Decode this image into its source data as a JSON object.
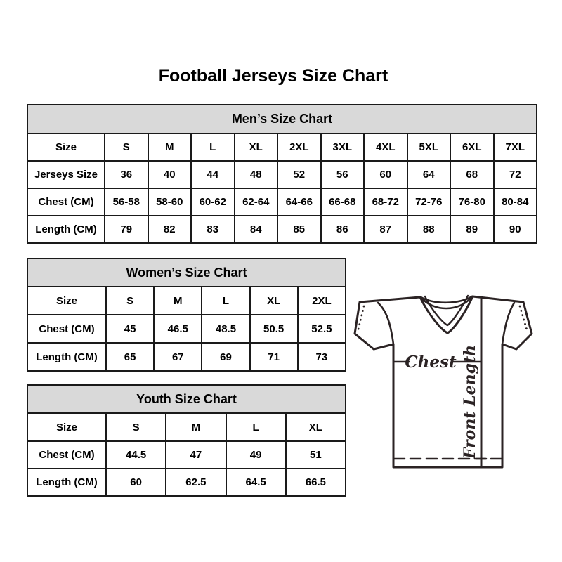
{
  "page_title": "Football Jerseys Size Chart",
  "colors": {
    "table_header_bg": "#d9d9d9",
    "table_border": "#1a1a1a",
    "line_art": "#2b2324",
    "text": "#000000"
  },
  "tables": [
    {
      "title": "Men’s Size Chart",
      "rows": [
        [
          "Size",
          "S",
          "M",
          "L",
          "XL",
          "2XL",
          "3XL",
          "4XL",
          "5XL",
          "6XL",
          "7XL"
        ],
        [
          "Jerseys Size",
          "36",
          "40",
          "44",
          "48",
          "52",
          "56",
          "60",
          "64",
          "68",
          "72"
        ],
        [
          "Chest (CM)",
          "56-58",
          "58-60",
          "60-62",
          "62-64",
          "64-66",
          "66-68",
          "68-72",
          "72-76",
          "76-80",
          "80-84"
        ],
        [
          "Length (CM)",
          "79",
          "82",
          "83",
          "84",
          "85",
          "86",
          "87",
          "88",
          "89",
          "90"
        ]
      ]
    },
    {
      "title": "Women’s Size Chart",
      "rows": [
        [
          "Size",
          "S",
          "M",
          "L",
          "XL",
          "2XL"
        ],
        [
          "Chest (CM)",
          "45",
          "46.5",
          "48.5",
          "50.5",
          "52.5"
        ],
        [
          "Length (CM)",
          "65",
          "67",
          "69",
          "71",
          "73"
        ]
      ]
    },
    {
      "title": "Youth Size Chart",
      "rows": [
        [
          "Size",
          "S",
          "M",
          "L",
          "XL"
        ],
        [
          "Chest (CM)",
          "44.5",
          "47",
          "49",
          "51"
        ],
        [
          "Length (CM)",
          "60",
          "62.5",
          "64.5",
          "66.5"
        ]
      ]
    }
  ],
  "diagram": {
    "chest_label": "Chest",
    "front_length_label": "Front Length"
  }
}
